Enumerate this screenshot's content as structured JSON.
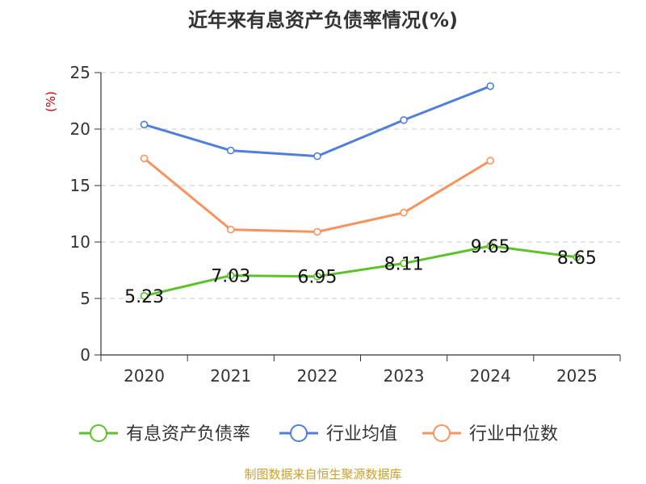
{
  "chart_data": {
    "type": "line",
    "title": "近年来有息资产负债率情况(%)",
    "ylabel": "(%)",
    "xlabel": "",
    "categories": [
      "2020",
      "2021",
      "2022",
      "2023",
      "2024",
      "2025"
    ],
    "ylim": [
      0,
      25
    ],
    "yticks": [
      0,
      5,
      10,
      15,
      20,
      25
    ],
    "grid": true,
    "legend_position": "bottom",
    "series": [
      {
        "name": "有息资产负债率",
        "color": "#5cc12a",
        "values": [
          5.23,
          7.03,
          6.95,
          8.11,
          9.65,
          8.65
        ],
        "show_labels": true
      },
      {
        "name": "行业均值",
        "color": "#4f7fdb",
        "values": [
          20.4,
          18.1,
          17.6,
          20.8,
          23.8,
          null
        ],
        "show_labels": false
      },
      {
        "name": "行业中位数",
        "color": "#f7935d",
        "values": [
          17.4,
          11.1,
          10.9,
          12.6,
          17.2,
          null
        ],
        "show_labels": false
      }
    ],
    "source": "制图数据来自恒生聚源数据库"
  }
}
